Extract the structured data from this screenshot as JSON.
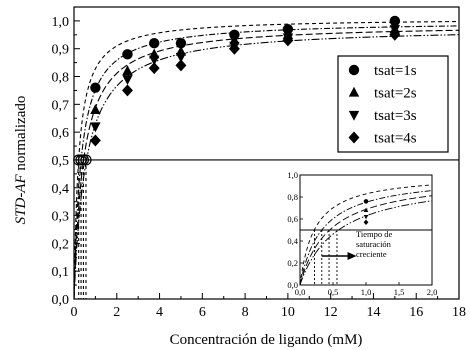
{
  "chart_data": {
    "type": "scatter",
    "xlabel": "Concentración de ligando (mM)",
    "ylabel_prefix": "STD-AF",
    "ylabel_suffix": " normalizado",
    "xlim": [
      0,
      18
    ],
    "ylim": [
      0,
      1.05
    ],
    "x_ticks": [
      0,
      2,
      4,
      6,
      8,
      10,
      12,
      14,
      16,
      18
    ],
    "y_ticks": [
      "0,0",
      "0,1",
      "0,2",
      "0,3",
      "0,4",
      "0,5",
      "0,6",
      "0,7",
      "0,8",
      "0,9",
      "1,0"
    ],
    "grid": false,
    "legend_position": "right",
    "reference_line_y": 0.5,
    "series": [
      {
        "name": "tsat=1s",
        "marker": "circle",
        "kd": 0.22,
        "bmax": 1.01,
        "dash": "4,3",
        "x": [
          1.0,
          2.5,
          3.75,
          5.0,
          7.5,
          10.0,
          15.0
        ],
        "y": [
          0.76,
          0.88,
          0.92,
          0.92,
          0.95,
          0.97,
          1.0
        ]
      },
      {
        "name": "tsat=2s",
        "marker": "triangle-up",
        "kd": 0.33,
        "bmax": 1.0,
        "dash": "6,2,1.5,2",
        "x": [
          1.0,
          2.5,
          3.75,
          5.0,
          7.5,
          10.0,
          15.0
        ],
        "y": [
          0.68,
          0.82,
          0.88,
          0.89,
          0.93,
          0.95,
          0.97
        ]
      },
      {
        "name": "tsat=3s",
        "marker": "triangle-down",
        "kd": 0.44,
        "bmax": 0.99,
        "dash": "7,3",
        "x": [
          1.0,
          2.5,
          3.75,
          5.0,
          7.5,
          10.0,
          15.0
        ],
        "y": [
          0.62,
          0.79,
          0.86,
          0.87,
          0.91,
          0.94,
          0.97
        ]
      },
      {
        "name": "tsat=4s",
        "marker": "diamond",
        "kd": 0.56,
        "bmax": 0.98,
        "dash": "8,2,1.5,2,1.5,2",
        "x": [
          1.0,
          2.5,
          3.75,
          5.0,
          7.5,
          10.0,
          15.0
        ],
        "y": [
          0.57,
          0.75,
          0.83,
          0.84,
          0.9,
          0.93,
          0.95
        ]
      }
    ],
    "half_saturation_points": [
      {
        "x": 0.22,
        "y": 0.5
      },
      {
        "x": 0.33,
        "y": 0.5
      },
      {
        "x": 0.44,
        "y": 0.5
      },
      {
        "x": 0.56,
        "y": 0.5
      }
    ],
    "inset": {
      "xlim": [
        0,
        2
      ],
      "ylim": [
        0,
        1.0
      ],
      "x_ticks": [
        "0,0",
        "0,5",
        "1,0",
        "1,5",
        "2,0"
      ],
      "y_ticks": [
        "0,0",
        "0,2",
        "0,4",
        "0,6",
        "0,8",
        "1,0"
      ],
      "annotation_lines": [
        "Tiempo de",
        "saturación",
        "creciente"
      ]
    }
  }
}
